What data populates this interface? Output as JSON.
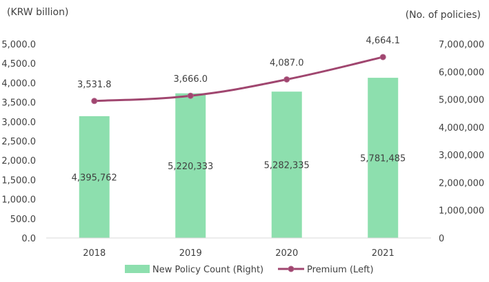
{
  "chart_data": {
    "type": "bar+line",
    "categories": [
      "2018",
      "2019",
      "2020",
      "2021"
    ],
    "left_unit": "(KRW billion)",
    "right_unit": "(No. of policies)",
    "left_ylim": [
      0,
      5000
    ],
    "right_ylim": [
      0,
      7000000
    ],
    "left_ticks": [
      "0.0",
      "500.0",
      "1,000.0",
      "1,500.0",
      "2,000.0",
      "2,500.0",
      "3,000.0",
      "3,500.0",
      "4,000.0",
      "4,500.0",
      "5,000.0"
    ],
    "right_ticks": [
      "0",
      "1,000,000",
      "2,000,000",
      "3,000,000",
      "4,000,000",
      "5,000,000",
      "6,000,000",
      "7,000,000"
    ],
    "series": [
      {
        "name": "New Policy Count (Right)",
        "type": "bar",
        "axis": "right",
        "color": "#8ddfae",
        "values": [
          4395762,
          5220333,
          5282335,
          5781485
        ],
        "labels": [
          "4,395,762",
          "5,220,333",
          "5,282,335",
          "5,781,485"
        ]
      },
      {
        "name": "Premium (Left)",
        "type": "line",
        "axis": "left",
        "color": "#a0466f",
        "values": [
          3531.8,
          3666.0,
          4087.0,
          4664.1
        ],
        "labels": [
          "3,531.8",
          "3,666.0",
          "4,087.0",
          "4,664.1"
        ]
      }
    ],
    "grid": false,
    "legend_position": "bottom"
  }
}
